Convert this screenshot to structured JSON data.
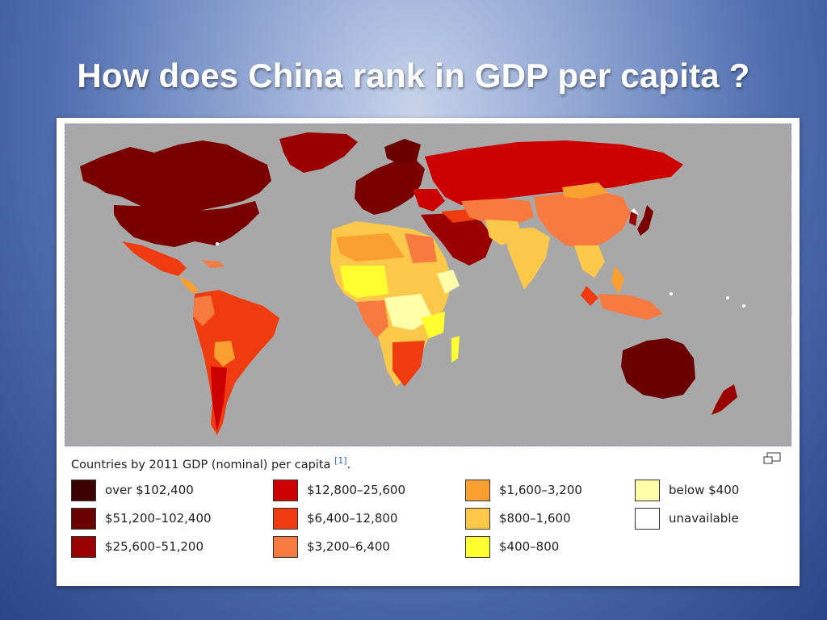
{
  "slide": {
    "title": "How does China rank in GDP per capita ?"
  },
  "figure": {
    "caption": "Countries by 2011 GDP (nominal) per capita",
    "reference": "[1]",
    "caption_end": "."
  },
  "legend": {
    "columns": [
      [
        {
          "label": "over $102,400",
          "color": "#3d0000"
        },
        {
          "label": "$51,200–102,400",
          "color": "#6b0000"
        },
        {
          "label": "$25,600–51,200",
          "color": "#9a0000"
        }
      ],
      [
        {
          "label": "$12,800–25,600",
          "color": "#cc0000"
        },
        {
          "label": "$6,400–12,800",
          "color": "#f03a10"
        },
        {
          "label": "$3,200–6,400",
          "color": "#f77a40"
        }
      ],
      [
        {
          "label": "$1,600–3,200",
          "color": "#f9a030"
        },
        {
          "label": "$800–1,600",
          "color": "#fcc84a"
        },
        {
          "label": "$400–800",
          "color": "#ffff30"
        }
      ],
      [
        {
          "label": "below $400",
          "color": "#ffffaa"
        },
        {
          "label": "unavailable",
          "color": "#ffffff"
        }
      ]
    ]
  },
  "map": {
    "ocean_color": "#a8a8a8"
  }
}
